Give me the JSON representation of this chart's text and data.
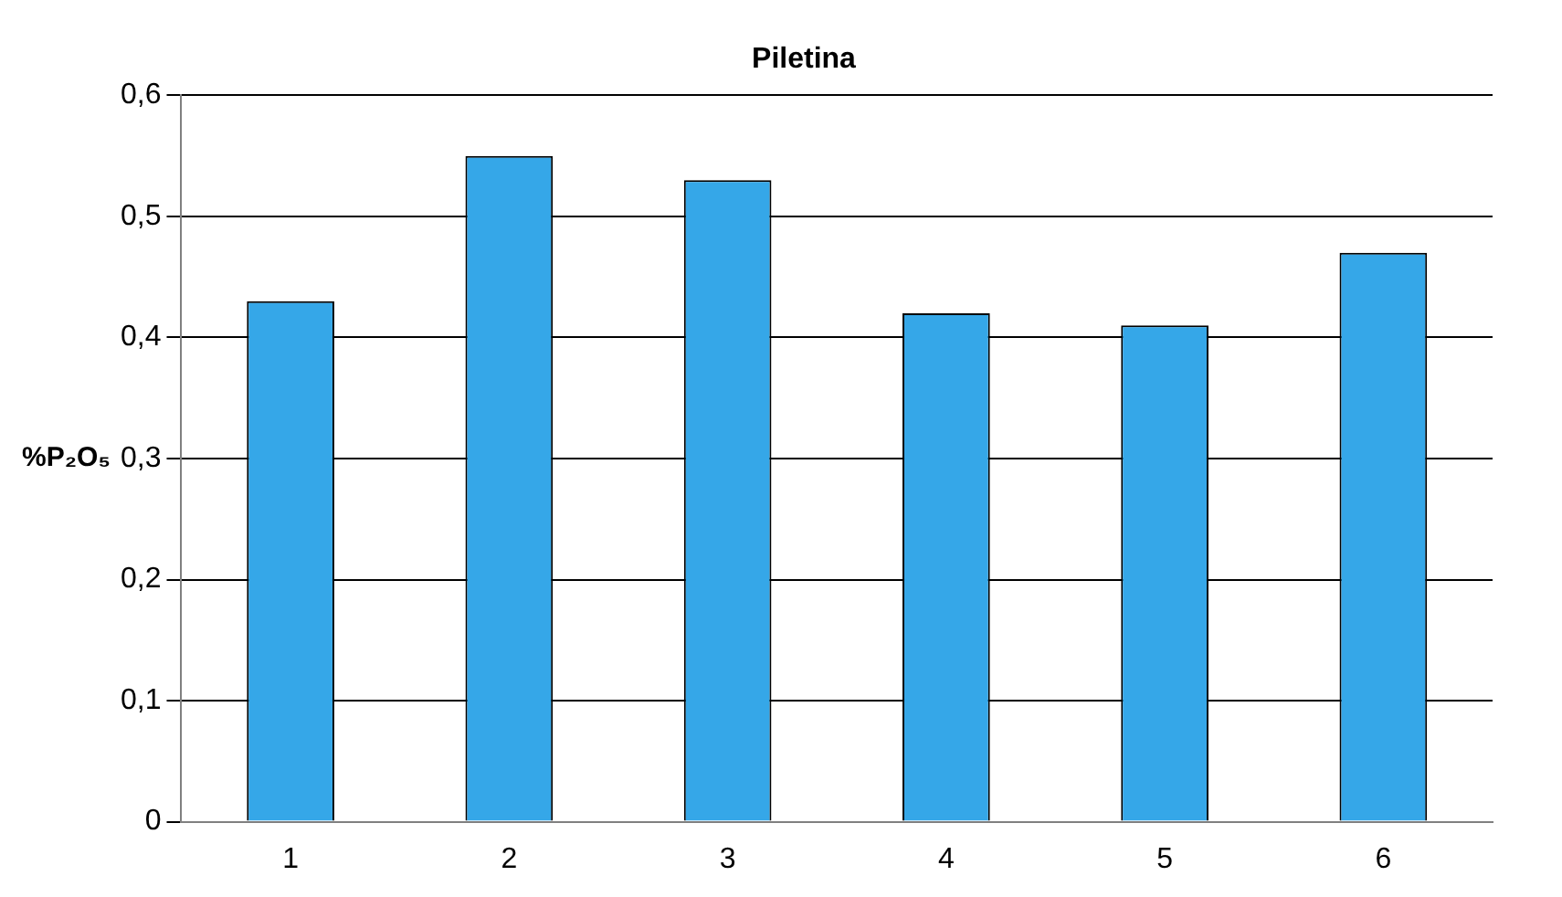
{
  "chart_data": {
    "type": "bar",
    "title": "Piletina",
    "ylabel": "%P₂O₅",
    "categories": [
      "1",
      "2",
      "3",
      "4",
      "5",
      "6"
    ],
    "values": [
      0.43,
      0.55,
      0.53,
      0.42,
      0.41,
      0.47
    ],
    "color": "#35a7e8",
    "ylim": [
      0,
      0.6
    ],
    "yticks": [
      {
        "value": 0,
        "label": "0"
      },
      {
        "value": 0.1,
        "label": "0,1"
      },
      {
        "value": 0.2,
        "label": "0,2"
      },
      {
        "value": 0.3,
        "label": "0,3"
      },
      {
        "value": 0.4,
        "label": "0,4"
      },
      {
        "value": 0.5,
        "label": "0,5"
      },
      {
        "value": 0.6,
        "label": "0,6"
      }
    ],
    "grid": "y",
    "legend": false
  }
}
